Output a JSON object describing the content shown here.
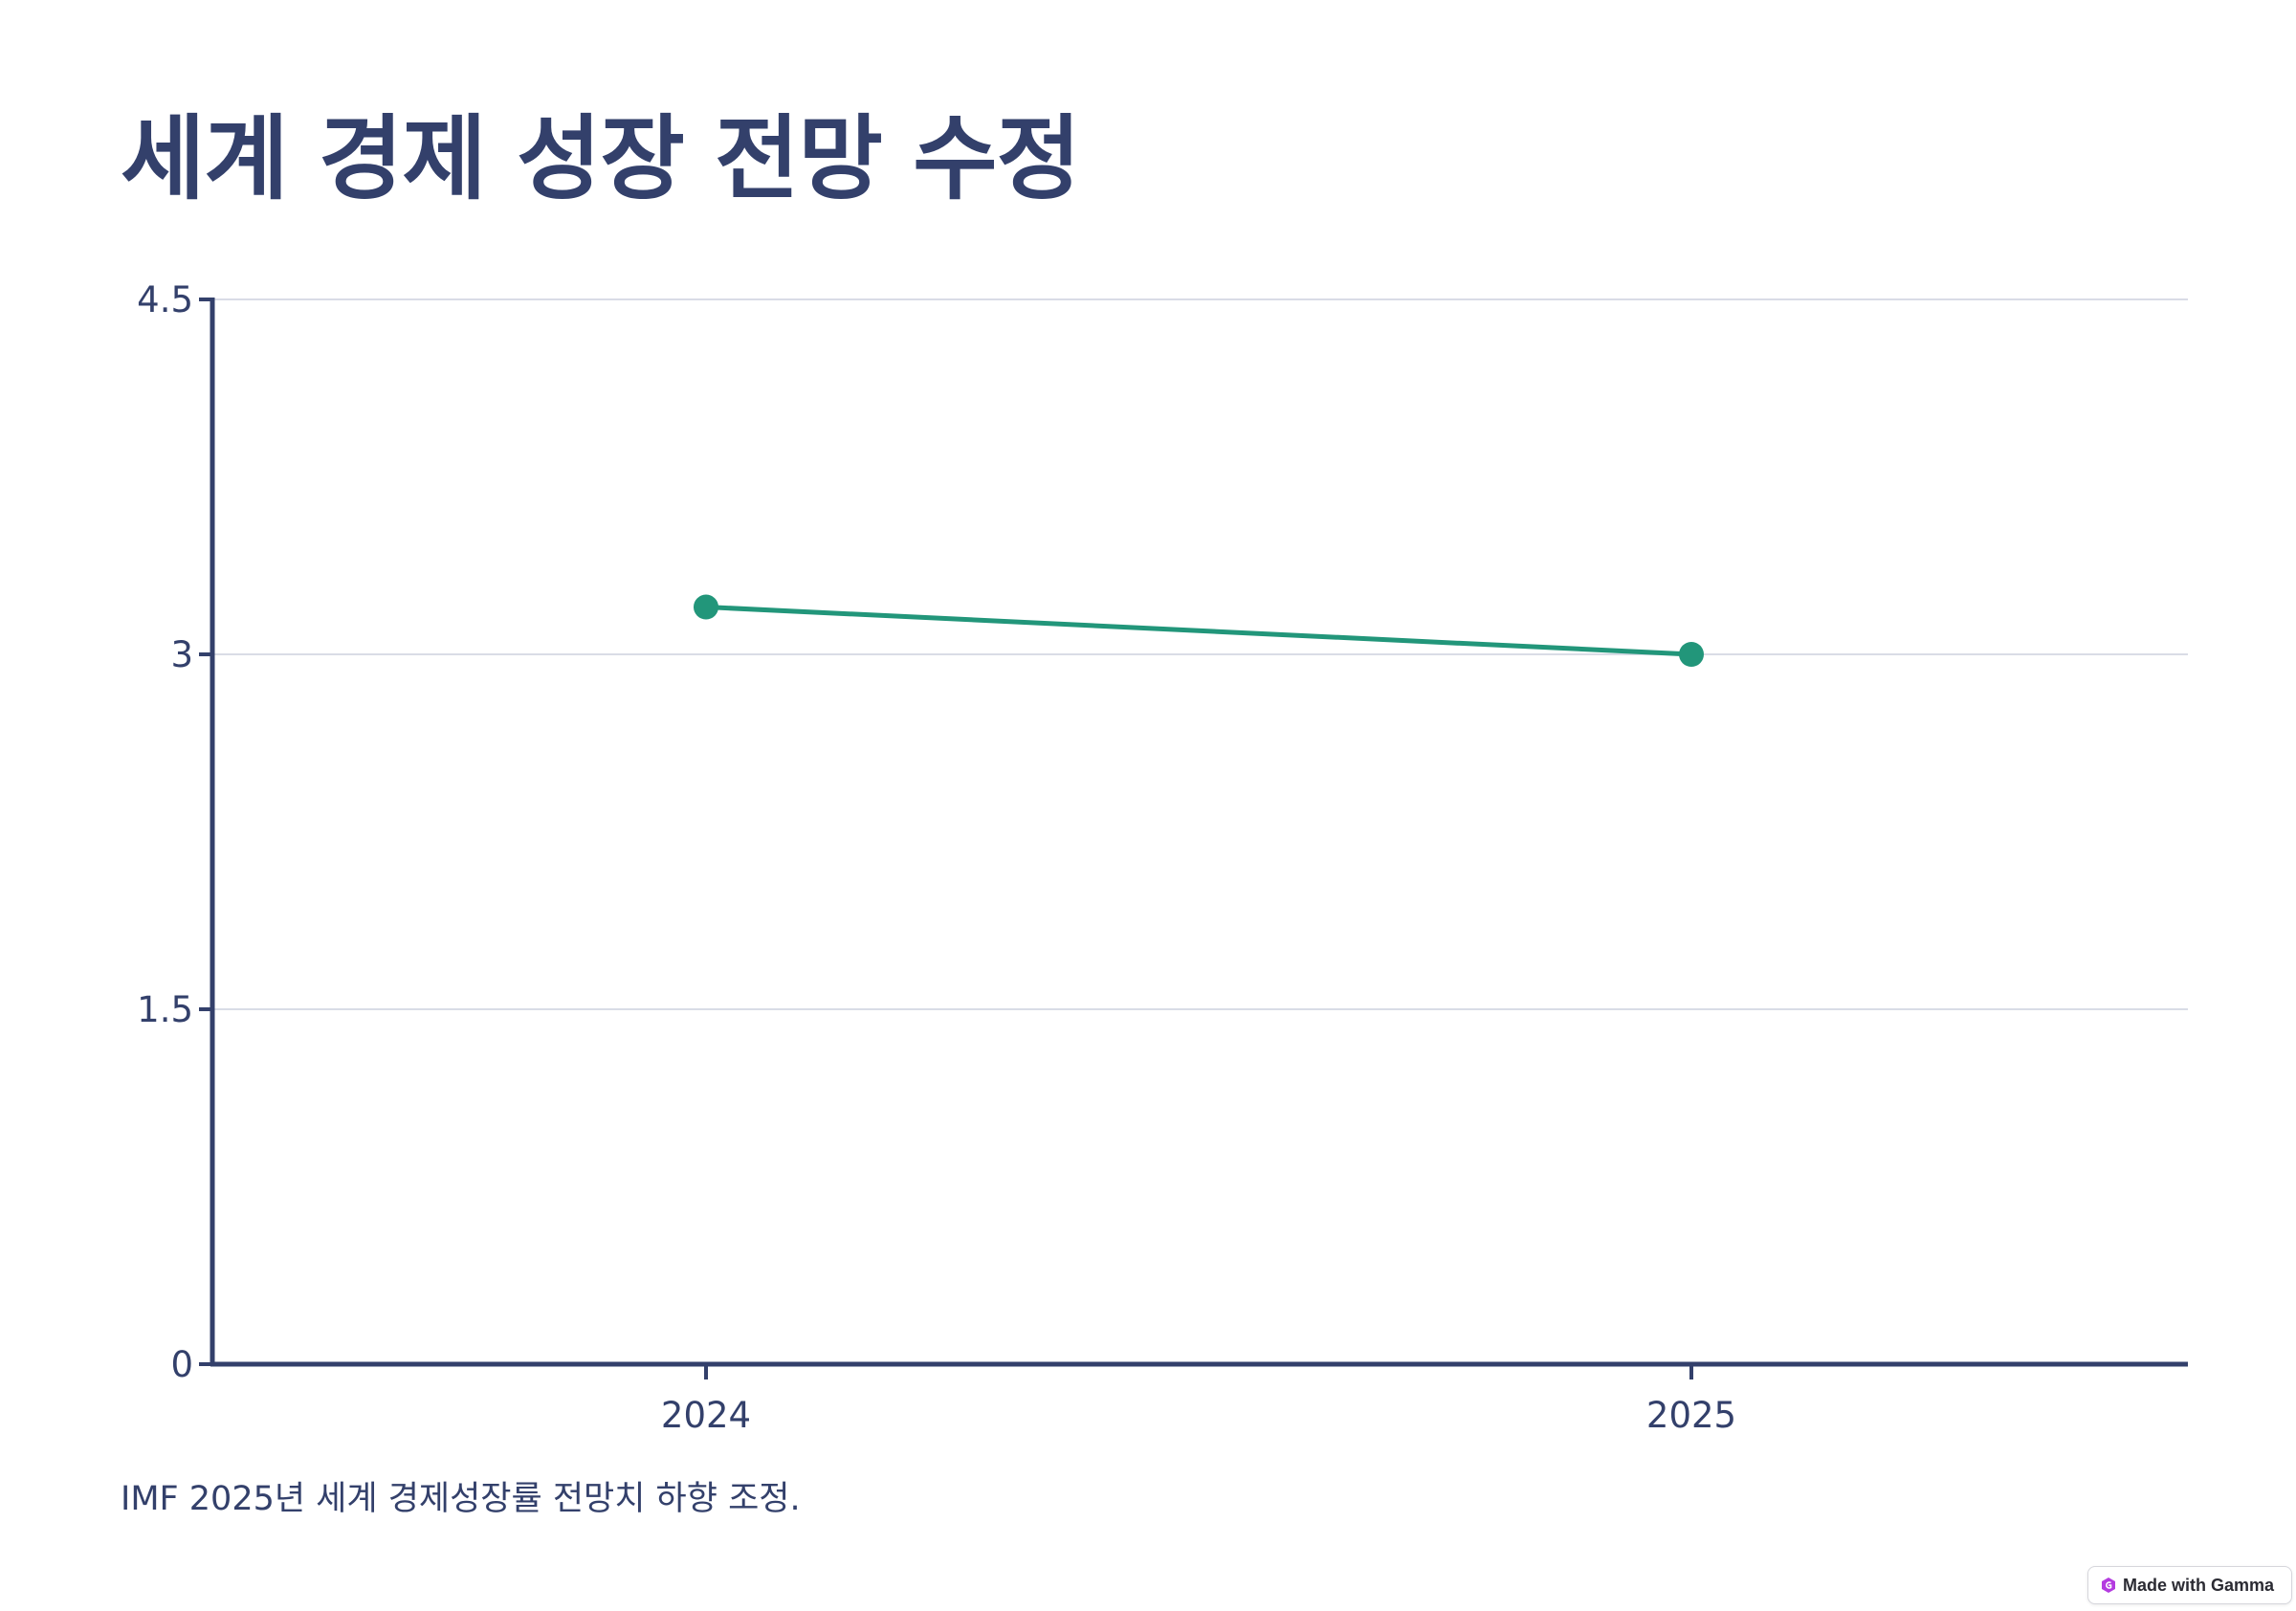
{
  "title": "세계 경제 성장 전망 수정",
  "caption": "IMF 2025년 세계 경제성장률 전망치 하향 조정.",
  "badge": {
    "label": "Made with Gamma",
    "icon": "gamma-logo-icon"
  },
  "colors": {
    "text": "#33406b",
    "axis": "#33406b",
    "grid": "#d9dce6",
    "series": "#22967a"
  },
  "chart_data": {
    "type": "line",
    "categories": [
      "2024",
      "2025"
    ],
    "series": [
      {
        "values": [
          3.2,
          3.0
        ]
      }
    ],
    "yticks": [
      "0",
      "1.5",
      "3",
      "4.5"
    ],
    "ylim": [
      0,
      4.5
    ],
    "grid": true,
    "legend": "none"
  }
}
